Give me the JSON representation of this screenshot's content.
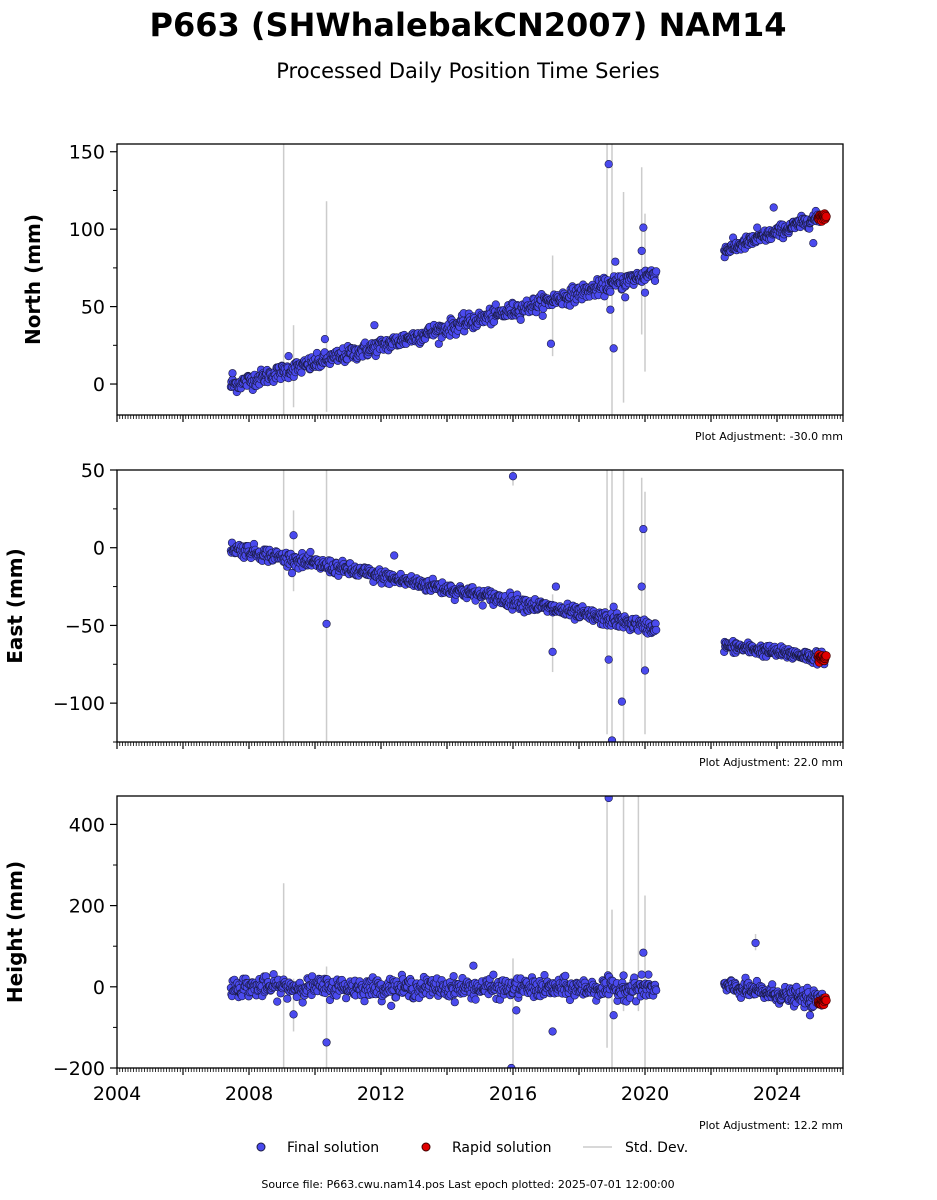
{
  "title": "P663 (SHWhalebakCN2007) NAM14",
  "subtitle": "Processed Daily Position Time Series",
  "source_line": "Source file: P663.cwu.nam14.pos  Last epoch plotted: 2025-07-01 12:00:00",
  "colors": {
    "final": "#4a4aee",
    "rapid": "#e00000",
    "stddev": "#cccccc",
    "marker_edge": "#1a1a40"
  },
  "legend": {
    "final": "Final solution",
    "rapid": "Rapid solution",
    "stddev": "Std. Dev."
  },
  "chart_data": [
    {
      "type": "scatter",
      "ylabel": "North (mm)",
      "ylim": [
        -20,
        155
      ],
      "yticks": [
        0,
        50,
        100,
        150
      ],
      "yticks_labels": [
        "0",
        "50",
        "100",
        "150"
      ],
      "xlim": [
        2004,
        2026
      ],
      "adjustment_label": "Plot Adjustment: -30.0 mm",
      "segments": [
        {
          "start": 2007.45,
          "end": 2020.35,
          "y_start": -1,
          "y_end": 72,
          "noise": 2.5,
          "step": 0.018
        },
        {
          "start": 2022.4,
          "end": 2025.45,
          "y_start": 86,
          "y_end": 109,
          "noise": 2.0,
          "step": 0.015
        }
      ],
      "rapid": {
        "start": 2025.25,
        "end": 2025.5,
        "y": 108,
        "noise": 1.0
      },
      "outliers": [
        [
          2007.5,
          7
        ],
        [
          2009.2,
          18
        ],
        [
          2010.3,
          29
        ],
        [
          2011.8,
          38
        ],
        [
          2017.15,
          26
        ],
        [
          2018.9,
          142
        ],
        [
          2018.95,
          48
        ],
        [
          2019.05,
          23
        ],
        [
          2019.1,
          79
        ],
        [
          2019.4,
          56
        ],
        [
          2019.9,
          86
        ],
        [
          2019.95,
          101
        ],
        [
          2020.0,
          59
        ],
        [
          2023.4,
          101
        ],
        [
          2023.9,
          114
        ],
        [
          2025.1,
          91
        ]
      ],
      "stddev_bars": [
        [
          2009.05,
          -20,
          155
        ],
        [
          2009.35,
          -15,
          38
        ],
        [
          2010.35,
          -18,
          118
        ],
        [
          2017.2,
          18,
          83
        ],
        [
          2018.85,
          50,
          160
        ],
        [
          2019.0,
          -20,
          155
        ],
        [
          2019.35,
          -12,
          124
        ],
        [
          2019.9,
          32,
          140
        ],
        [
          2020.0,
          8,
          110
        ]
      ]
    },
    {
      "type": "scatter",
      "ylabel": "East (mm)",
      "ylim": [
        -125,
        50
      ],
      "yticks": [
        -100,
        -50,
        0,
        50
      ],
      "yticks_labels": [
        "−100",
        "−50",
        "0",
        "50"
      ],
      "xlim": [
        2004,
        2026
      ],
      "adjustment_label": "Plot Adjustment: 22.0 mm",
      "segments": [
        {
          "start": 2007.45,
          "end": 2020.35,
          "y_start": 0,
          "y_end": -52,
          "noise": 2.2,
          "step": 0.018
        },
        {
          "start": 2022.4,
          "end": 2025.45,
          "y_start": -63,
          "y_end": -71,
          "noise": 1.8,
          "step": 0.015
        }
      ],
      "rapid": {
        "start": 2025.25,
        "end": 2025.5,
        "y": -71,
        "noise": 1.5
      },
      "outliers": [
        [
          2009.35,
          8
        ],
        [
          2010.35,
          -49
        ],
        [
          2012.4,
          -5
        ],
        [
          2016.0,
          46
        ],
        [
          2017.2,
          -67
        ],
        [
          2017.3,
          -25
        ],
        [
          2018.9,
          -72
        ],
        [
          2019.0,
          -124
        ],
        [
          2019.05,
          -38
        ],
        [
          2019.3,
          -99
        ],
        [
          2019.9,
          -25
        ],
        [
          2019.95,
          12
        ],
        [
          2020.0,
          -79
        ]
      ],
      "stddev_bars": [
        [
          2009.05,
          -125,
          50
        ],
        [
          2009.35,
          -28,
          24
        ],
        [
          2010.35,
          -125,
          50
        ],
        [
          2016.0,
          40,
          50
        ],
        [
          2017.2,
          -80,
          -30
        ],
        [
          2018.85,
          -120,
          50
        ],
        [
          2019.0,
          -125,
          50
        ],
        [
          2019.35,
          -125,
          50
        ],
        [
          2019.9,
          -80,
          45
        ],
        [
          2020.0,
          -120,
          36
        ]
      ]
    },
    {
      "type": "scatter",
      "ylabel": "Height (mm)",
      "ylim": [
        -200,
        470
      ],
      "yticks": [
        -200,
        0,
        200,
        400
      ],
      "yticks_labels": [
        "−200",
        "0",
        "200",
        "400"
      ],
      "xlim": [
        2004,
        2026
      ],
      "xticks": [
        2004,
        2008,
        2012,
        2016,
        2020,
        2024
      ],
      "xticks_labels": [
        "2004",
        "2008",
        "2012",
        "2016",
        "2020",
        "2024"
      ],
      "adjustment_label": "Plot Adjustment: 12.2 mm",
      "segments": [
        {
          "start": 2007.45,
          "end": 2020.35,
          "y_start": 0,
          "y_end": -5,
          "noise": 12,
          "step": 0.018
        },
        {
          "start": 2022.4,
          "end": 2025.45,
          "y_start": 0,
          "y_end": -35,
          "noise": 10,
          "step": 0.015
        }
      ],
      "rapid": {
        "start": 2025.25,
        "end": 2025.5,
        "y": -35,
        "noise": 6
      },
      "outliers": [
        [
          2009.35,
          -68
        ],
        [
          2010.35,
          -137
        ],
        [
          2014.8,
          52
        ],
        [
          2015.95,
          -200
        ],
        [
          2016.1,
          -58
        ],
        [
          2017.2,
          -110
        ],
        [
          2018.9,
          465
        ],
        [
          2019.05,
          -70
        ],
        [
          2019.35,
          28
        ],
        [
          2019.9,
          30
        ],
        [
          2019.95,
          84
        ],
        [
          2023.35,
          108
        ],
        [
          2025.0,
          -70
        ]
      ],
      "stddev_bars": [
        [
          2009.05,
          -200,
          255
        ],
        [
          2009.35,
          -110,
          20
        ],
        [
          2010.35,
          -200,
          50
        ],
        [
          2016.0,
          -200,
          70
        ],
        [
          2018.85,
          -150,
          470
        ],
        [
          2019.0,
          -200,
          190
        ],
        [
          2019.35,
          -60,
          470
        ],
        [
          2019.8,
          -60,
          470
        ],
        [
          2020.0,
          -200,
          225
        ],
        [
          2023.35,
          90,
          130
        ]
      ]
    }
  ]
}
